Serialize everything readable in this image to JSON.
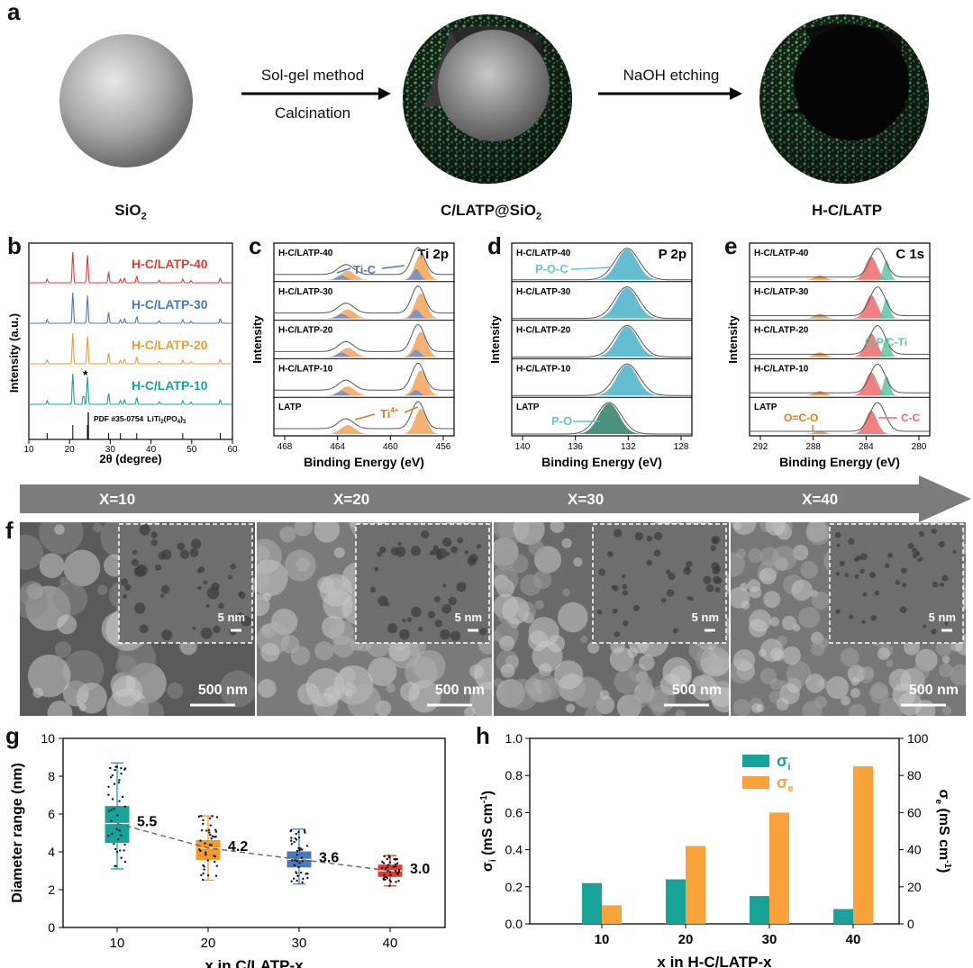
{
  "panels": {
    "a": "a",
    "b": "b",
    "c": "c",
    "d": "d",
    "e": "e",
    "f": "f",
    "g": "g",
    "h": "h"
  },
  "schematic": {
    "step1_line1": "Sol-gel method",
    "step1_line2": "Calcination",
    "step2": "NaOH etching",
    "cap1": "SiO",
    "cap1_sub": "2",
    "cap2": "C/LATP@SiO",
    "cap2_sub": "2",
    "cap3": "H-C/LATP"
  },
  "xrd": {
    "ylabel": "Intensity (a.u.)",
    "xlabel": "2θ (degree)",
    "ticks": [
      "10",
      "20",
      "30",
      "40",
      "50",
      "60"
    ],
    "series": [
      {
        "name": "H-C/LATP-40",
        "color": "#e53935"
      },
      {
        "name": "H-C/LATP-30",
        "color": "#4a78c0"
      },
      {
        "name": "H-C/LATP-20",
        "color": "#f39a2e"
      },
      {
        "name": "H-C/LATP-10",
        "color": "#17a39a"
      }
    ],
    "star": "*",
    "pdf": "PDF #35-0754",
    "pdf_formula": "LiTi",
    "pdf_sub": "2",
    "pdf_rest": "(PO",
    "pdf_sub2": "4",
    "pdf_end": ")",
    "pdf_sub3": "3"
  },
  "xps_ti": {
    "title": "Ti 2p",
    "xlabel": "Binding Energy (eV)",
    "ylabel": "Intensity",
    "ticks": [
      "468",
      "464",
      "460",
      "456"
    ],
    "rows": [
      "H-C/LATP-40",
      "H-C/LATP-30",
      "H-C/LATP-20",
      "H-C/LATP-10",
      "LATP"
    ],
    "ann1": "Ti-C",
    "ann2": "Ti",
    "ann2_sup": "4+"
  },
  "xps_p": {
    "title": "P 2p",
    "xlabel": "Binding Energy (eV)",
    "ylabel": "Intensity",
    "ticks": [
      "140",
      "136",
      "132",
      "128"
    ],
    "rows": [
      "H-C/LATP-40",
      "H-C/LATP-30",
      "H-C/LATP-20",
      "H-C/LATP-10",
      "LATP"
    ],
    "ann1": "P-O-C",
    "ann2": "P-O"
  },
  "xps_c": {
    "title": "C 1s",
    "xlabel": "Binding Energy (eV)",
    "ylabel": "Intensity",
    "ticks": [
      "292",
      "288",
      "284",
      "280"
    ],
    "rows": [
      "H-C/LATP-40",
      "H-C/LATP-30",
      "H-C/LATP-20",
      "H-C/LATP-10",
      "LATP"
    ],
    "ann1": "C-P/C-Ti",
    "ann2": "O=C-O",
    "ann3": "C-C"
  },
  "arrow": {
    "labels": [
      "X=10",
      "X=20",
      "X=30",
      "X=40"
    ]
  },
  "sem": {
    "scale_big": "500 nm",
    "scale_small": "5 nm"
  },
  "chart_data": [
    {
      "type": "box",
      "panel": "g",
      "xlabel": "x in C/LATP-x",
      "ylabel": "Diameter range (nm)",
      "ylim": [
        0,
        10
      ],
      "yticks": [
        "0",
        "2",
        "4",
        "6",
        "8",
        "10"
      ],
      "categories": [
        "10",
        "20",
        "30",
        "40"
      ],
      "colors": [
        "#17a39a",
        "#f39a2e",
        "#4a78c0",
        "#e53935"
      ],
      "median_labels": [
        "5.5",
        "4.2",
        "3.6",
        "3.0"
      ],
      "boxes": [
        {
          "min": 3.1,
          "q1": 4.5,
          "median": 5.5,
          "q3": 6.4,
          "max": 8.7
        },
        {
          "min": 2.5,
          "q1": 3.6,
          "median": 4.2,
          "q3": 4.6,
          "max": 5.9
        },
        {
          "min": 2.3,
          "q1": 3.2,
          "median": 3.6,
          "q3": 4.0,
          "max": 5.2
        },
        {
          "min": 2.2,
          "q1": 2.7,
          "median": 3.0,
          "q3": 3.3,
          "max": 3.8
        }
      ]
    },
    {
      "type": "bar",
      "panel": "h",
      "xlabel": "x in H-C/LATP-x",
      "ylabel_left": "σ",
      "ylabel_left_sub": "i",
      "ylabel_left_unit": " (mS cm",
      "ylabel_left_sup": "-1",
      "ylabel_left_end": ")",
      "ylabel_right": "σ",
      "ylabel_right_sub": "e",
      "ylabel_right_unit": " (mS cm",
      "ylabel_right_sup": "-1",
      "ylabel_right_end": ")",
      "categories": [
        "10",
        "20",
        "30",
        "40"
      ],
      "left_ylim": [
        0,
        1.0
      ],
      "right_ylim": [
        0,
        100
      ],
      "left_ticks": [
        "0.0",
        "0.2",
        "0.4",
        "0.6",
        "0.8",
        "1.0"
      ],
      "right_ticks": [
        "0",
        "20",
        "40",
        "60",
        "80",
        "100"
      ],
      "series": [
        {
          "name": "σ",
          "sub": "i",
          "axis": "left",
          "color": "#17a39a",
          "values": [
            0.22,
            0.24,
            0.15,
            0.08
          ]
        },
        {
          "name": "σ",
          "sub": "e",
          "axis": "right",
          "color": "#f9a23a",
          "values": [
            10,
            42,
            60,
            85
          ]
        }
      ]
    }
  ]
}
